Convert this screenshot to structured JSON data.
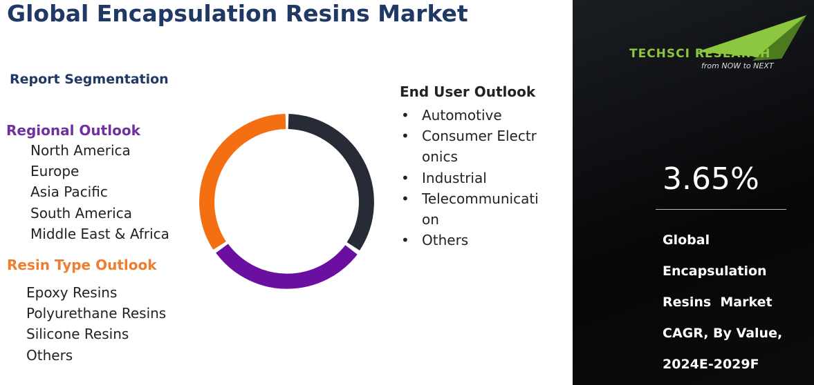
{
  "header": {
    "title": "Global Encapsulation Resins Market"
  },
  "segmentation": {
    "heading": "Report Segmentation",
    "groups": [
      {
        "title": "Regional Outlook",
        "items": [
          "North America",
          "Europe",
          "Asia Pacific",
          "South America",
          "Middle East & Africa"
        ]
      },
      {
        "title": "Resin Type Outlook",
        "items": [
          "Epoxy Resins",
          "Polyurethane Resins",
          "Silicone Resins",
          "Others"
        ]
      },
      {
        "title": "End User Outlook",
        "items": [
          "Automotive",
          "Consumer Electronics",
          "Industrial",
          "Telecommunication",
          "Others"
        ]
      }
    ]
  },
  "sidebar": {
    "brand": "TechSci Research",
    "tagline": "from NOW to NEXT",
    "value": "3.65%",
    "caption": [
      "Global",
      "Encapsulation",
      "Resins  Market",
      "CAGR, By Value,",
      "2024E-2029F"
    ]
  }
}
